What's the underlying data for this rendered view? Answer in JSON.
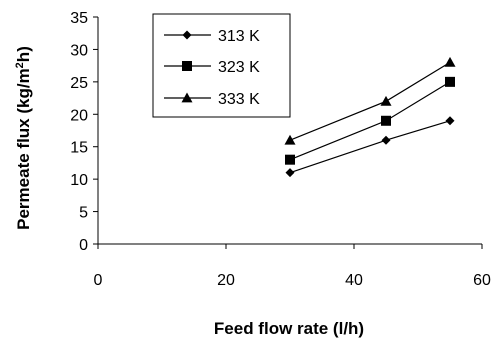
{
  "chart_data": {
    "type": "line",
    "xlabel": "Feed flow rate (l/h)",
    "ylabel_main": "Permeate flux (kg/m",
    "ylabel_sup": "2",
    "ylabel_tail": "h)",
    "xlim": [
      0,
      60
    ],
    "ylim": [
      0,
      35
    ],
    "xticks": [
      0,
      20,
      40,
      60
    ],
    "yticks": [
      0,
      5,
      10,
      15,
      20,
      25,
      30,
      35
    ],
    "grid": false,
    "legend_position": "top-left",
    "series": [
      {
        "name": "313 K",
        "marker": "diamond",
        "x": [
          30,
          45,
          55
        ],
        "values": [
          11,
          16,
          19
        ]
      },
      {
        "name": "323 K",
        "marker": "square",
        "x": [
          30,
          45,
          55
        ],
        "values": [
          13,
          19,
          25
        ]
      },
      {
        "name": "333 K",
        "marker": "triangle",
        "x": [
          30,
          45,
          55
        ],
        "values": [
          16,
          22,
          28
        ]
      }
    ],
    "line_color": "#000000",
    "marker_color": "#000000"
  }
}
